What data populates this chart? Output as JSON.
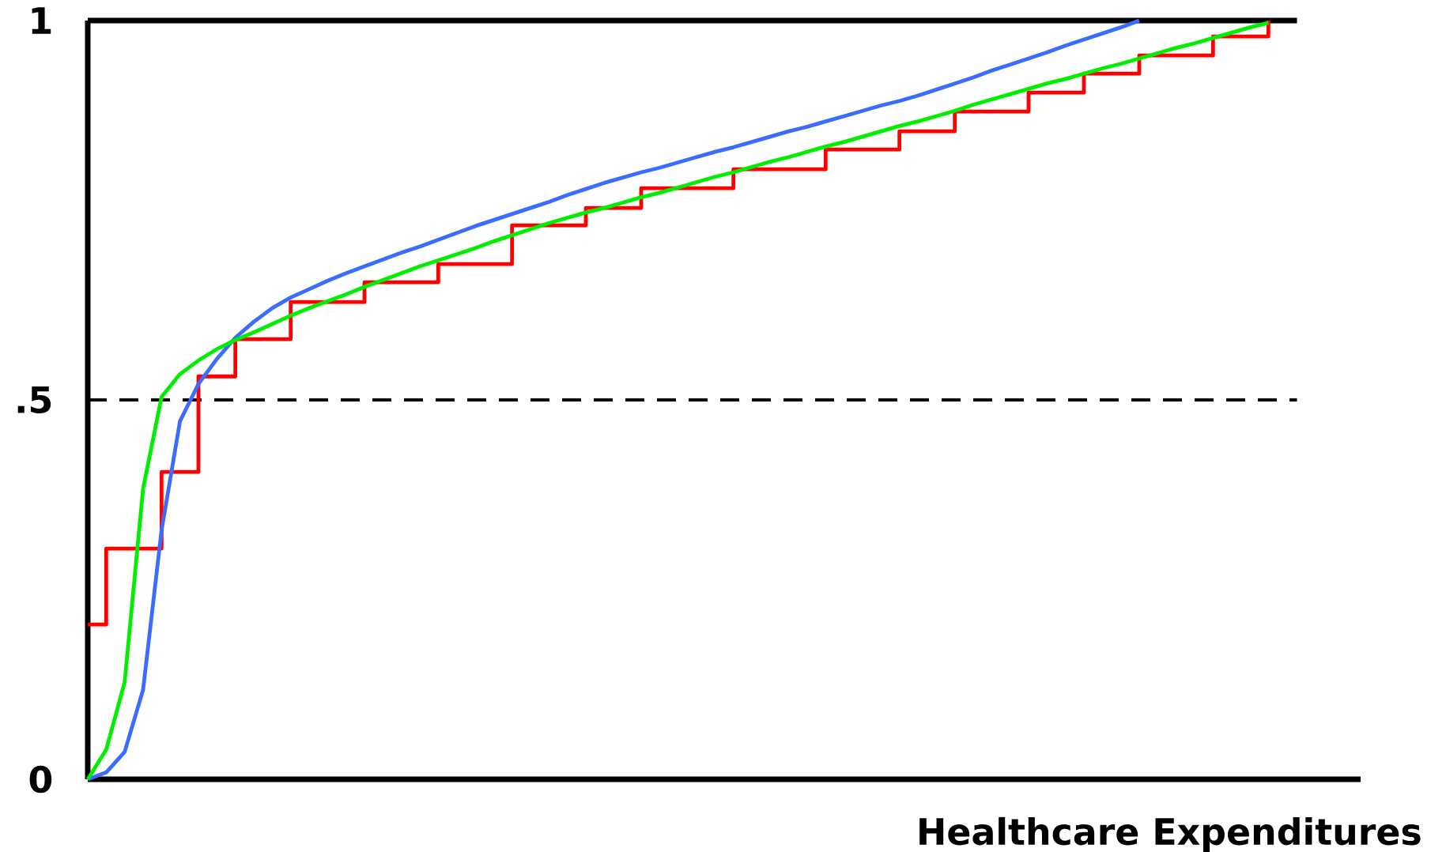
{
  "chart_data": {
    "type": "line",
    "xlabel": "Healthcare Expenditures",
    "categories": [
      null,
      null,
      null,
      null,
      null,
      null,
      null,
      null,
      null,
      null,
      null,
      null,
      null,
      null,
      null,
      null,
      null,
      null,
      null,
      null,
      null,
      null,
      null,
      null,
      null,
      null,
      null,
      null,
      null,
      null,
      null,
      null,
      null,
      null,
      null,
      null,
      null,
      null,
      null,
      null,
      null,
      null,
      null,
      null,
      null,
      null,
      null,
      null,
      null,
      null,
      null,
      null,
      null,
      null,
      null,
      null,
      null,
      null,
      null,
      null,
      null,
      null,
      null,
      null,
      null,
      null,
      null,
      null,
      null,
      null
    ],
    "ylim": [
      0,
      1
    ],
    "yticks": [
      {
        "value": 0,
        "label": "0"
      },
      {
        "value": 0.5,
        "label": ".5"
      },
      {
        "value": 1,
        "label": "1"
      }
    ],
    "tick_labels": "y",
    "ref_lines": [
      {
        "axis": "y",
        "value": 0.5,
        "line_style": "dashed",
        "color": "#000000"
      },
      {
        "axis": "y",
        "value": 1,
        "line_style": "solid",
        "color": "#000000"
      }
    ],
    "series": [
      {
        "type": "step",
        "color": "#ff0000",
        "values": [
          0.204,
          0.304,
          0.304,
          0.304,
          0.405,
          0.405,
          0.531,
          0.531,
          0.58,
          0.58,
          0.58,
          0.629,
          0.629,
          0.629,
          0.629,
          0.655,
          0.655,
          0.655,
          0.655,
          0.679,
          0.679,
          0.679,
          0.679,
          0.73,
          0.73,
          0.73,
          0.73,
          0.753,
          0.753,
          0.753,
          0.779,
          0.779,
          0.779,
          0.779,
          0.779,
          0.804,
          0.804,
          0.804,
          0.804,
          0.804,
          0.83,
          0.83,
          0.83,
          0.83,
          0.854,
          0.854,
          0.854,
          0.88,
          0.88,
          0.88,
          0.88,
          0.905,
          0.905,
          0.905,
          0.93,
          0.93,
          0.93,
          0.954,
          0.954,
          0.954,
          0.954,
          0.979,
          0.979,
          0.979,
          1.0,
          null,
          null,
          null,
          null,
          null
        ]
      },
      {
        "type": "line",
        "color": "#3a6cff",
        "values": [
          0,
          0.009,
          0.036,
          0.118,
          0.328,
          0.472,
          0.521,
          0.554,
          0.582,
          0.603,
          0.621,
          0.635,
          0.646,
          0.657,
          0.667,
          0.676,
          0.685,
          0.694,
          0.702,
          0.711,
          0.72,
          0.729,
          0.737,
          0.745,
          0.753,
          0.761,
          0.77,
          0.778,
          0.786,
          0.793,
          0.8,
          0.806,
          0.813,
          0.82,
          0.827,
          0.833,
          0.84,
          0.847,
          0.854,
          0.86,
          0.867,
          0.874,
          0.881,
          0.888,
          0.894,
          0.901,
          0.909,
          0.917,
          0.925,
          0.934,
          0.942,
          0.95,
          0.958,
          0.967,
          0.975,
          0.983,
          0.991,
          1.0,
          null,
          null,
          null,
          null,
          null,
          null,
          null,
          null,
          null,
          null,
          null,
          null
        ]
      },
      {
        "type": "line",
        "color": "#00ee00",
        "values": [
          0,
          0.039,
          0.128,
          0.383,
          0.504,
          0.534,
          0.552,
          0.567,
          0.579,
          0.589,
          0.6,
          0.611,
          0.621,
          0.63,
          0.639,
          0.649,
          0.658,
          0.667,
          0.676,
          0.684,
          0.692,
          0.7,
          0.709,
          0.717,
          0.725,
          0.733,
          0.74,
          0.747,
          0.753,
          0.76,
          0.767,
          0.773,
          0.78,
          0.787,
          0.794,
          0.8,
          0.807,
          0.814,
          0.82,
          0.827,
          0.834,
          0.84,
          0.847,
          0.854,
          0.861,
          0.867,
          0.874,
          0.881,
          0.889,
          0.896,
          0.903,
          0.91,
          0.917,
          0.923,
          0.93,
          0.937,
          0.943,
          0.95,
          0.957,
          0.964,
          0.97,
          0.977,
          0.984,
          0.991,
          0.997,
          null,
          null,
          null,
          null,
          null
        ]
      }
    ]
  }
}
